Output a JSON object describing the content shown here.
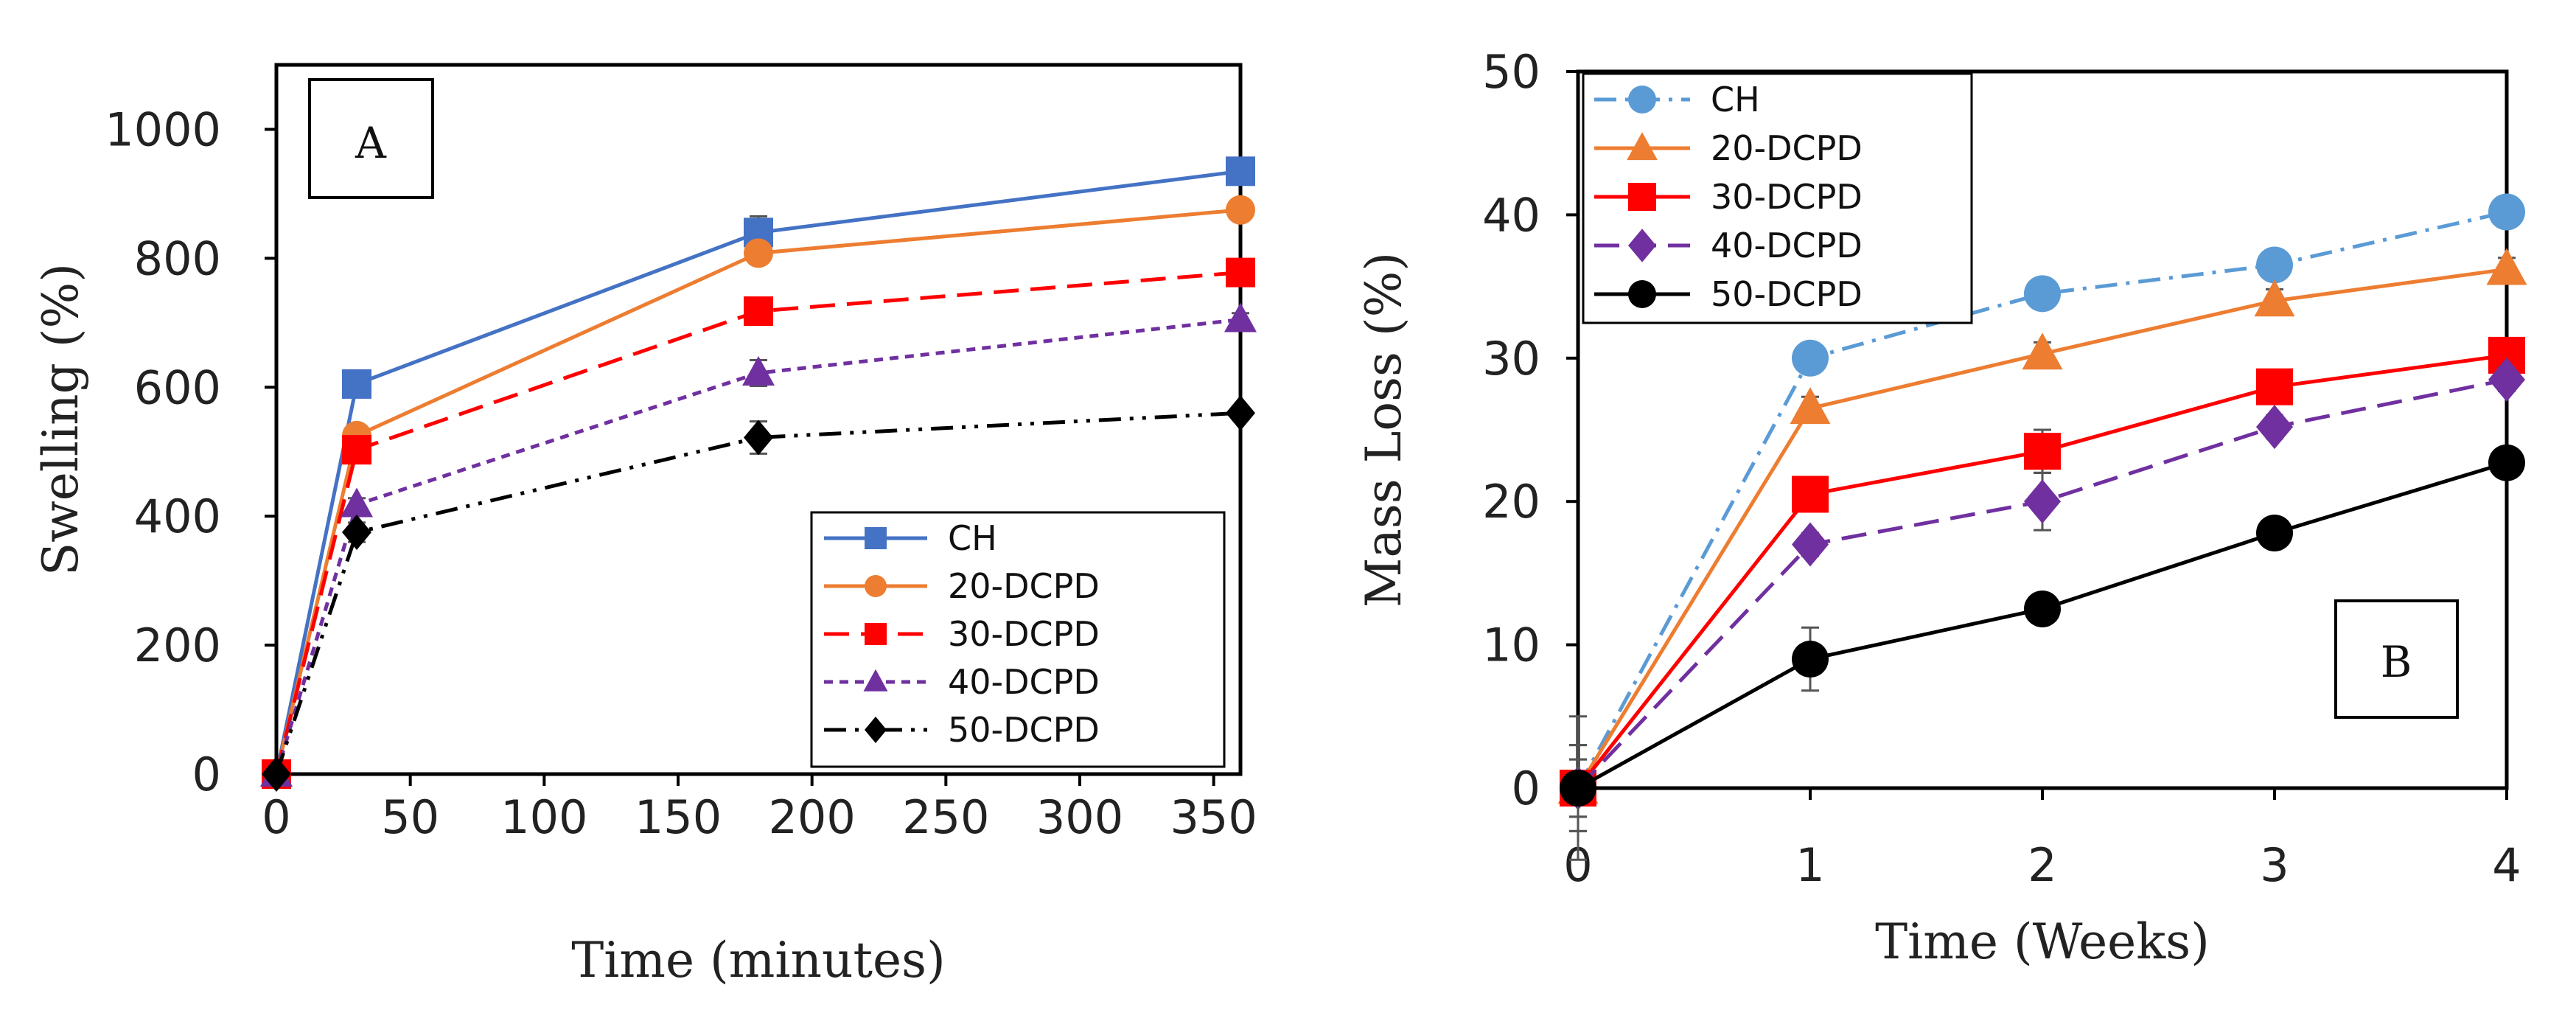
{
  "chart_data": [
    {
      "type": "line",
      "panel_label": "A",
      "xlabel": "Time (minutes)",
      "ylabel": "Swelling (%)",
      "xlim": [
        0,
        360
      ],
      "ylim": [
        0,
        1100
      ],
      "xticks": [
        0,
        50,
        100,
        150,
        200,
        250,
        300,
        350
      ],
      "yticks": [
        0,
        200,
        400,
        600,
        800,
        1000
      ],
      "legend_position": "bottom-right",
      "grid": false,
      "series": [
        {
          "name": "CH",
          "color": "#4472C4",
          "marker": "square",
          "dash": "solid",
          "x": [
            0,
            30,
            180,
            360
          ],
          "values": [
            0,
            605,
            840,
            935
          ],
          "err": [
            0,
            8,
            25,
            10
          ]
        },
        {
          "name": "20-DCPD",
          "color": "#ED7D31",
          "marker": "circle",
          "dash": "solid",
          "x": [
            0,
            30,
            180,
            360
          ],
          "values": [
            0,
            525,
            808,
            875
          ],
          "err": [
            0,
            8,
            15,
            8
          ]
        },
        {
          "name": "30-DCPD",
          "color": "#FF0000",
          "marker": "square",
          "dash": "long-dash",
          "x": [
            0,
            30,
            180,
            360
          ],
          "values": [
            0,
            503,
            718,
            778
          ],
          "err": [
            0,
            10,
            18,
            10
          ]
        },
        {
          "name": "40-DCPD",
          "color": "#7030A0",
          "marker": "triangle",
          "dash": "short-dash",
          "x": [
            0,
            30,
            180,
            360
          ],
          "values": [
            0,
            418,
            622,
            705
          ],
          "err": [
            0,
            10,
            20,
            10
          ]
        },
        {
          "name": "50-DCPD",
          "color": "#000000",
          "marker": "diamond",
          "dash": "dash-dot-dot",
          "x": [
            0,
            30,
            180,
            360
          ],
          "values": [
            0,
            375,
            522,
            560
          ],
          "err": [
            0,
            15,
            25,
            10
          ]
        }
      ]
    },
    {
      "type": "line",
      "panel_label": "B",
      "xlabel": "Time (Weeks)",
      "ylabel": "Mass Loss (%)",
      "xlim": [
        0,
        4
      ],
      "ylim": [
        0,
        50
      ],
      "xticks": [
        0,
        1,
        2,
        3,
        4
      ],
      "yticks": [
        0,
        10,
        20,
        30,
        40,
        50
      ],
      "legend_position": "top-left",
      "grid": false,
      "series": [
        {
          "name": "CH",
          "color": "#5B9BD5",
          "marker": "circle",
          "dash": "dash-dot",
          "x": [
            0,
            1,
            2,
            3,
            4
          ],
          "values": [
            0,
            30,
            34.5,
            36.5,
            40.2
          ],
          "err": [
            5,
            0.8,
            0.8,
            0.8,
            0.8
          ]
        },
        {
          "name": "20-DCPD",
          "color": "#ED7D31",
          "marker": "triangle",
          "dash": "solid",
          "x": [
            0,
            1,
            2,
            3,
            4
          ],
          "values": [
            0,
            26.5,
            30.3,
            34,
            36.2
          ],
          "err": [
            3,
            0.8,
            0.8,
            0.8,
            0.8
          ]
        },
        {
          "name": "30-DCPD",
          "color": "#FF0000",
          "marker": "square",
          "dash": "solid",
          "x": [
            0,
            1,
            2,
            3,
            4
          ],
          "values": [
            0,
            20.5,
            23.5,
            28,
            30.2
          ],
          "err": [
            3,
            0.8,
            1.5,
            0.8,
            0.8
          ]
        },
        {
          "name": "40-DCPD",
          "color": "#7030A0",
          "marker": "diamond",
          "dash": "long-dash",
          "x": [
            0,
            1,
            2,
            3,
            4
          ],
          "values": [
            0,
            17,
            20,
            25.2,
            28.5
          ],
          "err": [
            2,
            0.8,
            2,
            0.8,
            0.8
          ]
        },
        {
          "name": "50-DCPD",
          "color": "#000000",
          "marker": "circle",
          "dash": "solid",
          "x": [
            0,
            1,
            2,
            3,
            4
          ],
          "values": [
            0,
            9,
            12.5,
            17.8,
            22.7
          ],
          "err": [
            2,
            2.2,
            0.8,
            0.8,
            0.8
          ]
        }
      ]
    }
  ]
}
